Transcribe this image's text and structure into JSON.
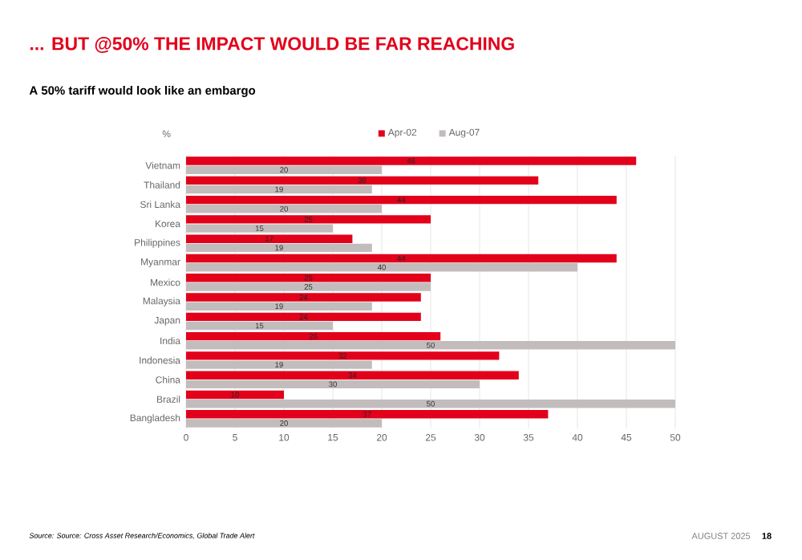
{
  "chart_data": {
    "type": "bar",
    "orientation": "horizontal",
    "title": "... BUT @50% THE IMPACT WOULD BE FAR REACHING",
    "subtitle": "A 50% tariff would look like an embargo",
    "ylabel": "%",
    "categories": [
      "Vietnam",
      "Thailand",
      "Sri Lanka",
      "Korea",
      "Philippines",
      "Myanmar",
      "Mexico",
      "Malaysia",
      "Japan",
      "India",
      "Indonesia",
      "China",
      "Brazil",
      "Bangladesh"
    ],
    "series": [
      {
        "name": "Apr-02",
        "color": "#e2001a",
        "values": [
          46,
          36,
          44,
          25,
          17,
          44,
          25,
          24,
          24,
          26,
          32,
          34,
          10,
          37
        ]
      },
      {
        "name": "Aug-07",
        "color": "#c3bcbc",
        "values": [
          20,
          19,
          20,
          15,
          19,
          40,
          25,
          19,
          15,
          50,
          19,
          30,
          50,
          20
        ]
      }
    ],
    "xlim": [
      0,
      50
    ],
    "xticks": [
      0,
      5,
      10,
      15,
      20,
      25,
      30,
      35,
      40,
      45,
      50
    ],
    "grid": "x",
    "legend": "top",
    "data_labels": true,
    "annotations": [
      "Source: Source: Cross Asset Research/Economics, Global Trade Alert",
      "AUGUST 2025",
      "18"
    ]
  }
}
